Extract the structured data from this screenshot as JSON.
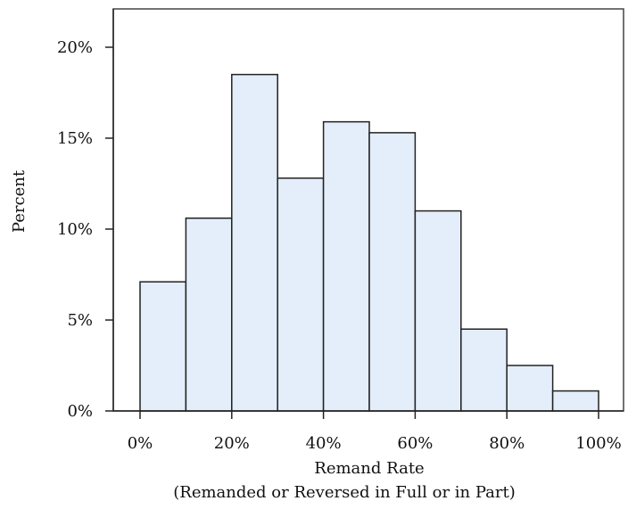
{
  "chart_data": {
    "type": "bar",
    "bin_edges": [
      0,
      10,
      20,
      30,
      40,
      50,
      60,
      70,
      80,
      90,
      100
    ],
    "values": [
      7.1,
      10.6,
      18.5,
      12.8,
      15.9,
      15.3,
      11.0,
      4.5,
      2.5,
      1.1
    ],
    "ylabel": "Percent",
    "xlabel": "Remand Rate",
    "xlabel2": "(Remanded or Reversed in Full or in Part)",
    "ylim": [
      0,
      22
    ],
    "xlim": [
      0,
      100
    ],
    "x_ticks": [
      0,
      20,
      40,
      60,
      80,
      100
    ],
    "x_tick_labels": [
      "0%",
      "20%",
      "40%",
      "60%",
      "80%",
      "100%"
    ],
    "y_ticks": [
      0,
      5,
      10,
      15,
      20
    ],
    "y_tick_labels": [
      "0%",
      "5%",
      "10%",
      "15%",
      "20%"
    ],
    "grid": false,
    "colors": {
      "bar_fill": "#e3eefa",
      "bar_stroke": "#222222",
      "axis": "#222222",
      "frame": "#444444"
    }
  }
}
